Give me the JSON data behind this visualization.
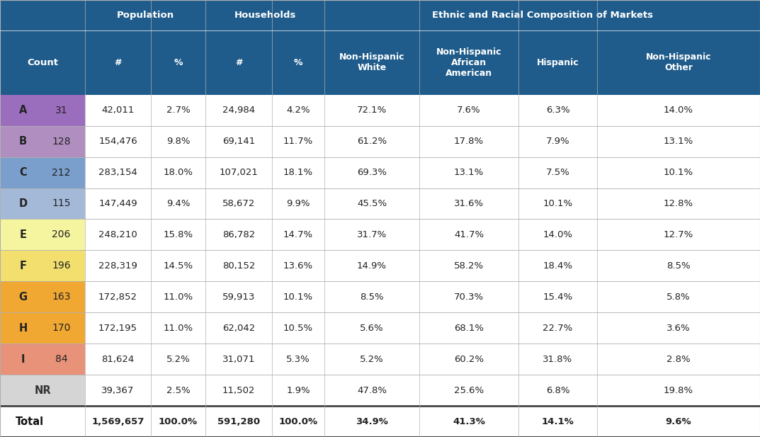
{
  "header_bg": "#1f5c8b",
  "header_text_color": "#ffffff",
  "row_labels": [
    "A",
    "B",
    "C",
    "D",
    "E",
    "F",
    "G",
    "H",
    "I",
    "NR",
    "Total"
  ],
  "row_counts": [
    "31",
    "128",
    "212",
    "115",
    "206",
    "196",
    "163",
    "170",
    "84",
    "",
    ""
  ],
  "row_colors": [
    "#9b6dbd",
    "#b08fc0",
    "#7a9fcc",
    "#a4b8d8",
    "#f5f5a0",
    "#f2df6e",
    "#f0a832",
    "#f0a832",
    "#e8927a",
    "#d5d5d5",
    "#ffffff"
  ],
  "col_headers_sub": [
    "Count",
    "#",
    "%",
    "#",
    "%",
    "Non-Hispanic\nWhite",
    "Non-Hispanic\nAfrican\nAmerican",
    "Hispanic",
    "Non-Hispanic\nOther"
  ],
  "data": [
    [
      "42,011",
      "2.7%",
      "24,984",
      "4.2%",
      "72.1%",
      "7.6%",
      "6.3%",
      "14.0%"
    ],
    [
      "154,476",
      "9.8%",
      "69,141",
      "11.7%",
      "61.2%",
      "17.8%",
      "7.9%",
      "13.1%"
    ],
    [
      "283,154",
      "18.0%",
      "107,021",
      "18.1%",
      "69.3%",
      "13.1%",
      "7.5%",
      "10.1%"
    ],
    [
      "147,449",
      "9.4%",
      "58,672",
      "9.9%",
      "45.5%",
      "31.6%",
      "10.1%",
      "12.8%"
    ],
    [
      "248,210",
      "15.8%",
      "86,782",
      "14.7%",
      "31.7%",
      "41.7%",
      "14.0%",
      "12.7%"
    ],
    [
      "228,319",
      "14.5%",
      "80,152",
      "13.6%",
      "14.9%",
      "58.2%",
      "18.4%",
      "8.5%"
    ],
    [
      "172,852",
      "11.0%",
      "59,913",
      "10.1%",
      "8.5%",
      "70.3%",
      "15.4%",
      "5.8%"
    ],
    [
      "172,195",
      "11.0%",
      "62,042",
      "10.5%",
      "5.6%",
      "68.1%",
      "22.7%",
      "3.6%"
    ],
    [
      "81,624",
      "5.2%",
      "31,071",
      "5.3%",
      "5.2%",
      "60.2%",
      "31.8%",
      "2.8%"
    ],
    [
      "39,367",
      "2.5%",
      "11,502",
      "1.9%",
      "47.8%",
      "25.6%",
      "6.8%",
      "19.8%"
    ],
    [
      "1,569,657",
      "100.0%",
      "591,280",
      "100.0%",
      "34.9%",
      "41.3%",
      "14.1%",
      "9.6%"
    ]
  ],
  "fig_width": 10.73,
  "fig_height": 6.17,
  "dpi": 100
}
